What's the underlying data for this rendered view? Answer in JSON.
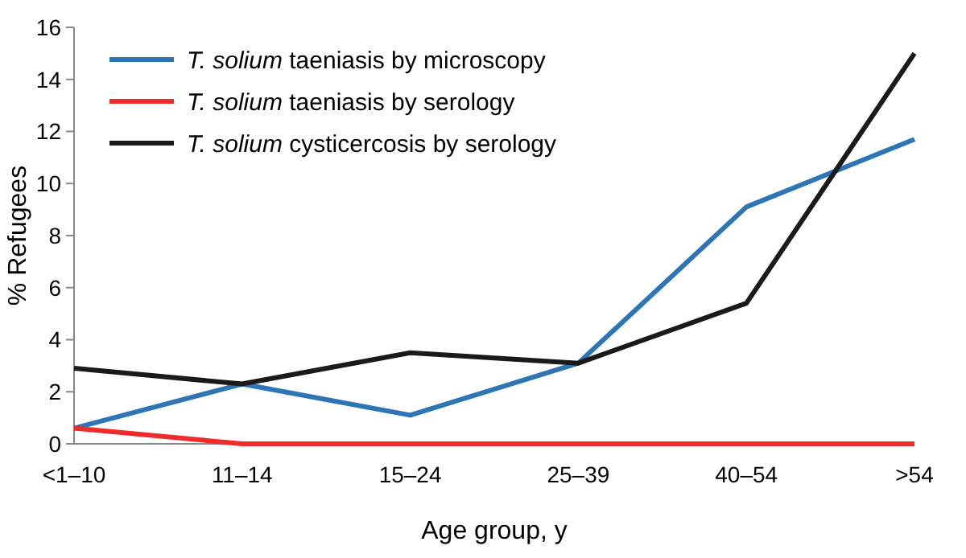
{
  "chart_data": {
    "type": "line",
    "xlabel": "Age group, y",
    "ylabel": "% Refugees",
    "categories": [
      "<1–10",
      "11–14",
      "15–24",
      "25–39",
      "40–54",
      ">54"
    ],
    "series": [
      {
        "name": "T. solium taeniasis by microscopy",
        "color": "#2e75b6",
        "values": [
          0.6,
          2.3,
          1.1,
          3.1,
          9.1,
          11.7
        ]
      },
      {
        "name": "T. solium taeniasis by serology",
        "color": "#ee2c2c",
        "values": [
          0.6,
          0,
          0,
          0,
          0,
          0
        ]
      },
      {
        "name": "T. solium cysticercosis by serology",
        "color": "#1a1a1a",
        "values": [
          2.9,
          2.3,
          3.5,
          3.1,
          5.4,
          15.0
        ]
      }
    ],
    "ylim": [
      0,
      16
    ],
    "yticks": [
      0,
      2,
      4,
      6,
      8,
      10,
      12,
      14,
      16
    ],
    "grid": false,
    "legend": "top left",
    "marker": "none",
    "line_style": "solid"
  }
}
